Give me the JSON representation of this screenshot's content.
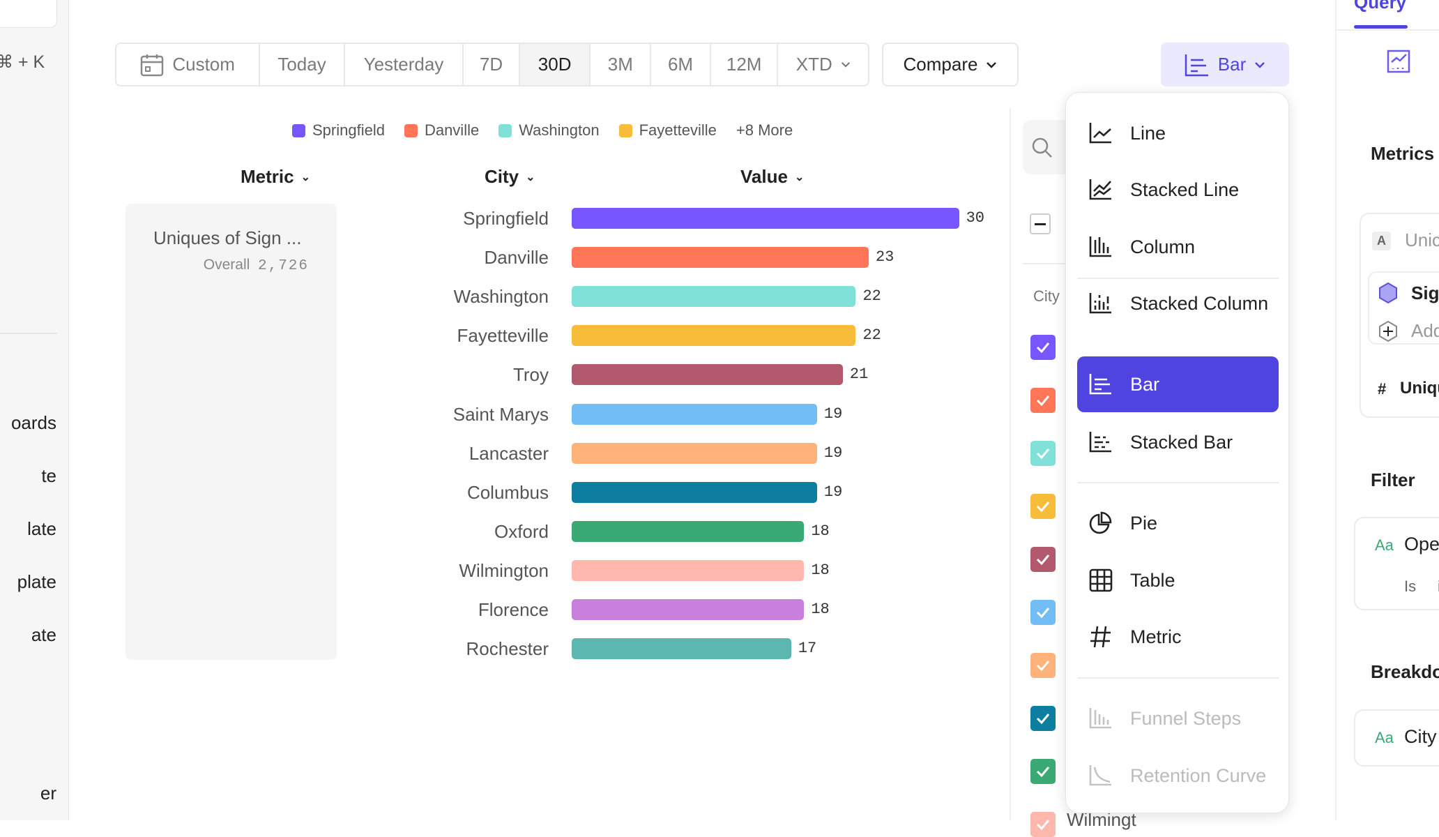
{
  "sidebar": {
    "shortcut": "⌘ + K",
    "items": [
      "oards",
      "te",
      "late",
      "plate",
      "ate",
      "er"
    ]
  },
  "datebar": {
    "custom": "Custom",
    "ranges": [
      "Today",
      "Yesterday",
      "7D",
      "30D",
      "3M",
      "6M",
      "12M",
      "XTD"
    ],
    "selected": "30D"
  },
  "compare": "Compare",
  "chart_type_button": "Bar",
  "legend": {
    "items": [
      {
        "name": "Springfield",
        "color": "#7856ff"
      },
      {
        "name": "Danville",
        "color": "#ff7557"
      },
      {
        "name": "Washington",
        "color": "#80e1d9"
      },
      {
        "name": "Fayetteville",
        "color": "#f8bc3b"
      }
    ],
    "more": "+8 More"
  },
  "table_headers": {
    "metric": "Metric",
    "city": "City",
    "value": "Value"
  },
  "metric_card": {
    "name": "Uniques of Sign ...",
    "overall_label": "Overall",
    "overall_value": "2,726"
  },
  "chart_data": {
    "type": "bar",
    "orientation": "horizontal",
    "categories": [
      "Springfield",
      "Danville",
      "Washington",
      "Fayetteville",
      "Troy",
      "Saint Marys",
      "Lancaster",
      "Columbus",
      "Oxford",
      "Wilmington",
      "Florence",
      "Rochester"
    ],
    "values": [
      30,
      23,
      22,
      22,
      21,
      19,
      19,
      19,
      18,
      18,
      18,
      17
    ],
    "colors": [
      "#7856ff",
      "#ff7557",
      "#80e1d9",
      "#f8bc3b",
      "#b2596e",
      "#72bef4",
      "#ffb27a",
      "#0d7ea0",
      "#3ba974",
      "#feb7ac",
      "#c97fdc",
      "#5bb7af"
    ]
  },
  "side_list": {
    "header": "City",
    "partial_label": "Wilmingt"
  },
  "menu": {
    "items": [
      {
        "label": "Line",
        "icon": "line-chart-icon"
      },
      {
        "label": "Stacked Line",
        "icon": "stacked-line-icon"
      },
      {
        "label": "Column",
        "icon": "column-chart-icon"
      },
      {
        "label": "Stacked Column",
        "icon": "stacked-column-icon"
      },
      {
        "label": "Bar",
        "icon": "bar-chart-icon",
        "selected": true
      },
      {
        "label": "Stacked Bar",
        "icon": "stacked-bar-icon"
      },
      {
        "label": "Pie",
        "icon": "pie-chart-icon"
      },
      {
        "label": "Table",
        "icon": "table-icon"
      },
      {
        "label": "Metric",
        "icon": "hash-icon"
      },
      {
        "label": "Funnel Steps",
        "icon": "funnel-icon",
        "disabled": true
      },
      {
        "label": "Retention Curve",
        "icon": "retention-icon",
        "disabled": true
      }
    ]
  },
  "right_panel": {
    "tab": "Query",
    "metrics_title": "Metrics",
    "metric_letter": "A",
    "metric_name": "Unic",
    "event": "Sig",
    "add": "Add",
    "measure_hash": "#",
    "measure": "Uniqu",
    "filter_title": "Filter",
    "filter_prop_icon": "Aa",
    "filter_prop": "Ope",
    "filter_op": "Is",
    "filter_val": "i",
    "breakdown_title": "Breakdo",
    "breakdown_icon": "Aa",
    "breakdown_prop": "City"
  },
  "accent": "#4f44e0"
}
